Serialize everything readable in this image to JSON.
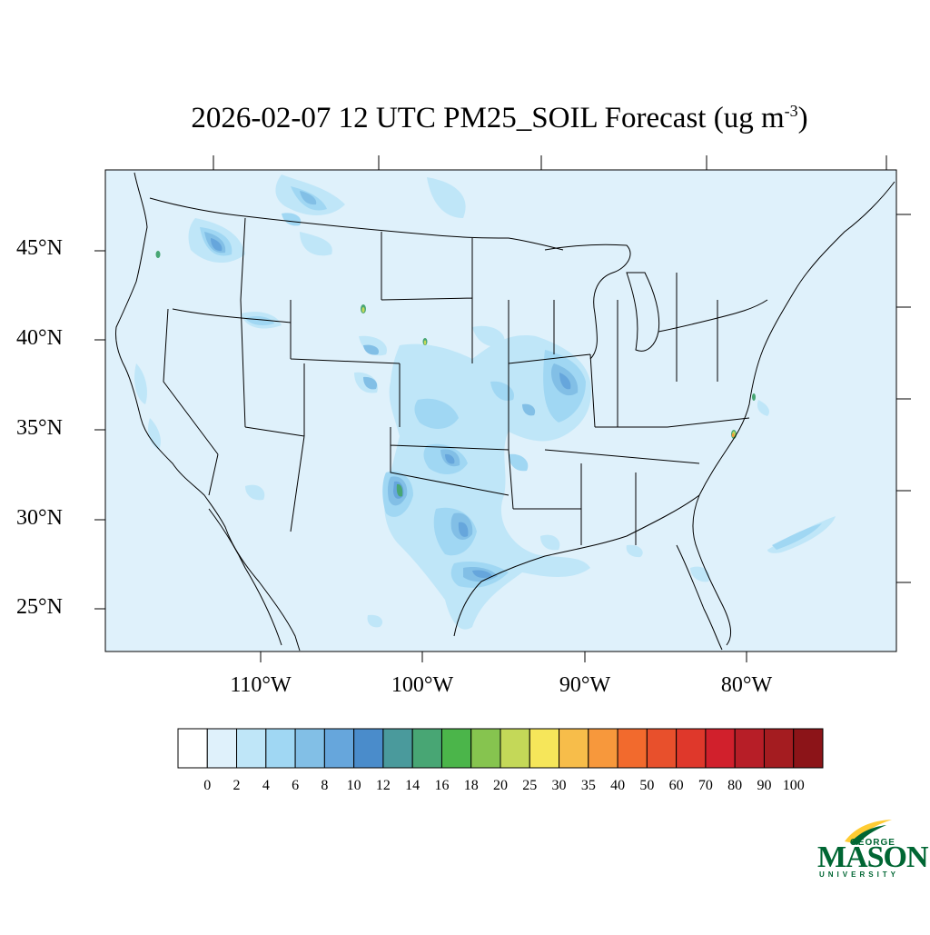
{
  "title": {
    "text": "2026-02-07 12 UTC PM25_SOIL Forecast (ug m",
    "sup": "-3",
    "close": ")"
  },
  "map": {
    "region": "Continental United States",
    "background_color": "#dff1fb",
    "lat_labels": [
      "45°N",
      "40°N",
      "35°N",
      "30°N",
      "25°N"
    ],
    "lon_labels": [
      "110°W",
      "100°W",
      "90°W",
      "80°W"
    ]
  },
  "colorbar": {
    "labels": [
      "0",
      "2",
      "4",
      "6",
      "8",
      "10",
      "12",
      "14",
      "16",
      "18",
      "20",
      "25",
      "30",
      "35",
      "40",
      "50",
      "60",
      "70",
      "80",
      "90",
      "100"
    ],
    "colors": [
      "#ffffff",
      "#dff1fb",
      "#bfe6f8",
      "#a0d7f3",
      "#82bfe6",
      "#66a6dc",
      "#4a8ccb",
      "#4a9a9c",
      "#48a674",
      "#4bb54a",
      "#86c44f",
      "#c4d858",
      "#f6e65a",
      "#f7bd4a",
      "#f7983c",
      "#f26a2d",
      "#e8502c",
      "#df382b",
      "#d1202c",
      "#b71e27",
      "#a41c20",
      "#8c1418"
    ]
  },
  "logo": {
    "top": "GEORGE",
    "main": "MASON",
    "sub": "UNIVERSITY",
    "colors": {
      "green": "#006633",
      "gold": "#ffcc33"
    }
  }
}
